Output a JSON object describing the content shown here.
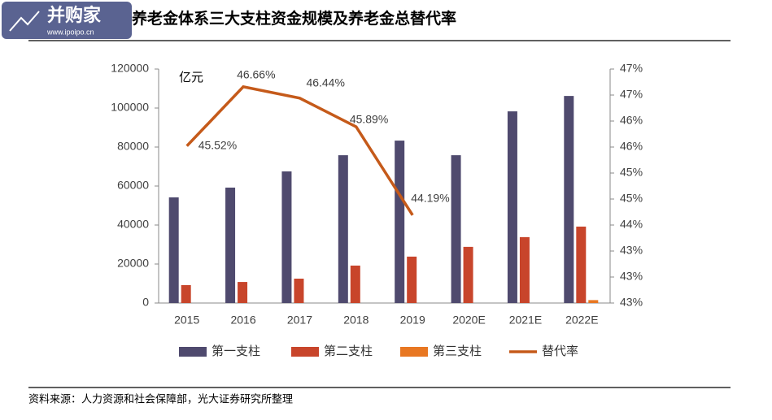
{
  "logo": {
    "name": "并购家",
    "url": "www.ipoipo.cn"
  },
  "chart_data": {
    "type": "bar",
    "title": "养老金体系三大支柱资金规模及养老金总替代率",
    "ylabel": "亿元",
    "source": "资料来源：人力资源和社会保障部，光大证券研究所整理",
    "categories": [
      "2015",
      "2016",
      "2017",
      "2018",
      "2019",
      "2020E",
      "2021E",
      "2022E"
    ],
    "ylim": [
      0,
      120000
    ],
    "yticks": [
      0,
      20000,
      40000,
      60000,
      80000,
      100000,
      120000
    ],
    "y2lim": [
      42.5,
      47
    ],
    "y2ticks": [
      {
        "value": 42.5,
        "label": "43%"
      },
      {
        "value": 43,
        "label": "43%"
      },
      {
        "value": 43.5,
        "label": "43%"
      },
      {
        "value": 44,
        "label": "44%"
      },
      {
        "value": 44.5,
        "label": "45%"
      },
      {
        "value": 45,
        "label": "45%"
      },
      {
        "value": 45.5,
        "label": "46%"
      },
      {
        "value": 46,
        "label": "46%"
      },
      {
        "value": 46.5,
        "label": "47%"
      },
      {
        "value": 47,
        "label": "47%"
      }
    ],
    "series": [
      {
        "name": "第一支柱",
        "type": "bar",
        "color": "#4f4a6e",
        "values": [
          54200,
          59200,
          67500,
          75800,
          83300,
          75800,
          98300,
          106200
        ]
      },
      {
        "name": "第二支柱",
        "type": "bar",
        "color": "#c8452b",
        "values": [
          9200,
          10800,
          12500,
          19200,
          23800,
          28800,
          33800,
          39200
        ]
      },
      {
        "name": "第三支柱",
        "type": "bar",
        "color": "#e87722",
        "values": [
          null,
          null,
          null,
          null,
          null,
          null,
          null,
          1500
        ]
      },
      {
        "name": "替代率",
        "type": "line",
        "axis": "y2",
        "color": "#c55a1a",
        "values": [
          45.52,
          46.66,
          46.44,
          45.89,
          44.19,
          null,
          null,
          null
        ],
        "value_labels": [
          "45.52%",
          "46.66%",
          "46.44%",
          "45.89%",
          "44.19%",
          null,
          null,
          null
        ]
      }
    ]
  }
}
